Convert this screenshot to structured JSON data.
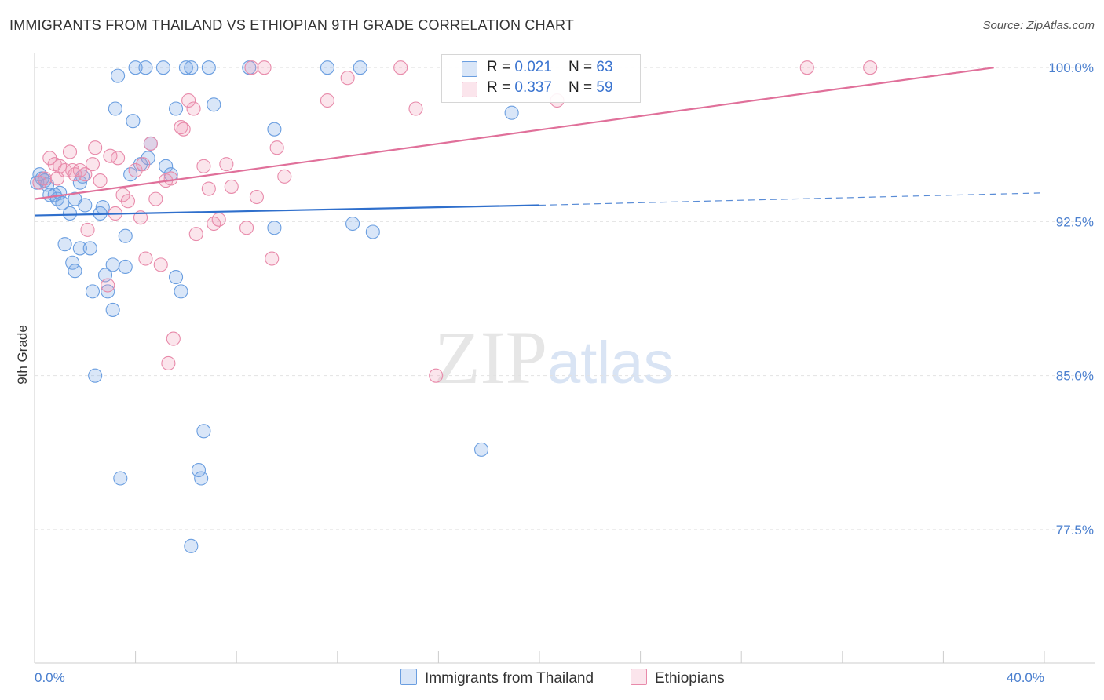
{
  "title": "IMMIGRANTS FROM THAILAND VS ETHIOPIAN 9TH GRADE CORRELATION CHART",
  "source": "Source: ZipAtlas.com",
  "watermark": {
    "zip": "ZIP",
    "atlas": "atlas"
  },
  "colors": {
    "blue": "#6a9ee0",
    "blue_fill": "rgba(120,165,230,0.28)",
    "pink": "#e88aaa",
    "pink_fill": "rgba(240,150,180,0.25)",
    "blue_line": "#2f6fcc",
    "pink_line": "#e0709a",
    "tick_text": "#4a7fcf"
  },
  "legend_top": [
    {
      "r_label": "R = ",
      "r_value": "0.021",
      "n_label": "N = ",
      "n_value": "63"
    },
    {
      "r_label": "R = ",
      "r_value": "0.337",
      "n_label": "N = ",
      "n_value": "59"
    }
  ],
  "legend_bottom": [
    "Immigrants from Thailand",
    "Ethiopians"
  ],
  "chart_data": {
    "type": "scatter",
    "title": "IMMIGRANTS FROM THAILAND VS ETHIOPIAN 9TH GRADE CORRELATION CHART",
    "xlabel": "",
    "ylabel": "9th Grade",
    "xlim": [
      0,
      40
    ],
    "ylim": [
      71.0,
      101.0
    ],
    "x_tick_labels": [
      {
        "value": 0,
        "label": "0.0%"
      },
      {
        "value": 40,
        "label": "40.0%"
      }
    ],
    "y_tick_labels": [
      {
        "value": 100,
        "label": "100.0%"
      },
      {
        "value": 92.5,
        "label": "92.5%"
      },
      {
        "value": 85,
        "label": "85.0%"
      },
      {
        "value": 77.5,
        "label": "77.5%"
      }
    ],
    "series": [
      {
        "name": "Immigrants from Thailand",
        "r": 0.021,
        "n": 63,
        "trend": {
          "x": [
            0,
            20
          ],
          "y": [
            92.8,
            93.3
          ],
          "dashed_to": [
            40,
            93.9
          ]
        },
        "points": [
          [
            0.1,
            94.4
          ],
          [
            0.2,
            94.8
          ],
          [
            0.3,
            94.6
          ],
          [
            0.4,
            94.5
          ],
          [
            0.5,
            94.3
          ],
          [
            0.6,
            93.8
          ],
          [
            0.8,
            93.8
          ],
          [
            0.9,
            93.6
          ],
          [
            1.0,
            93.9
          ],
          [
            1.1,
            93.4
          ],
          [
            1.4,
            92.9
          ],
          [
            1.6,
            93.6
          ],
          [
            1.8,
            94.4
          ],
          [
            1.9,
            94.7
          ],
          [
            2.0,
            93.3
          ],
          [
            2.6,
            92.9
          ],
          [
            2.7,
            93.2
          ],
          [
            1.2,
            91.4
          ],
          [
            1.5,
            90.5
          ],
          [
            1.6,
            90.1
          ],
          [
            1.8,
            91.2
          ],
          [
            2.2,
            91.2
          ],
          [
            2.3,
            89.1
          ],
          [
            2.8,
            89.9
          ],
          [
            2.9,
            89.1
          ],
          [
            3.1,
            90.4
          ],
          [
            3.1,
            88.2
          ],
          [
            3.6,
            90.3
          ],
          [
            3.6,
            91.8
          ],
          [
            3.8,
            94.8
          ],
          [
            4.2,
            95.3
          ],
          [
            4.5,
            95.6
          ],
          [
            4.6,
            96.3
          ],
          [
            5.2,
            95.2
          ],
          [
            5.4,
            94.8
          ],
          [
            5.6,
            89.8
          ],
          [
            5.8,
            89.1
          ],
          [
            2.4,
            85.0
          ],
          [
            3.4,
            80.0
          ],
          [
            6.7,
            82.3
          ],
          [
            6.5,
            80.4
          ],
          [
            6.6,
            80.0
          ],
          [
            6.2,
            76.7
          ],
          [
            3.2,
            98.0
          ],
          [
            3.3,
            99.6
          ],
          [
            3.9,
            97.4
          ],
          [
            4.0,
            100.0
          ],
          [
            4.4,
            100.0
          ],
          [
            5.1,
            100.0
          ],
          [
            5.6,
            98.0
          ],
          [
            6.0,
            100.0
          ],
          [
            6.2,
            100.0
          ],
          [
            6.9,
            100.0
          ],
          [
            7.1,
            98.2
          ],
          [
            8.5,
            100.0
          ],
          [
            9.5,
            97.0
          ],
          [
            9.5,
            92.2
          ],
          [
            11.6,
            100.0
          ],
          [
            12.6,
            92.4
          ],
          [
            12.9,
            100.0
          ],
          [
            13.4,
            92.0
          ],
          [
            18.9,
            97.8
          ],
          [
            17.7,
            81.4
          ]
        ]
      },
      {
        "name": "Ethiopians",
        "r": 0.337,
        "n": 59,
        "trend": {
          "x": [
            0,
            38
          ],
          "y": [
            93.6,
            100.0
          ]
        },
        "points": [
          [
            0.2,
            94.4
          ],
          [
            0.4,
            94.6
          ],
          [
            0.6,
            95.6
          ],
          [
            0.8,
            95.3
          ],
          [
            1.0,
            95.2
          ],
          [
            1.2,
            95.0
          ],
          [
            1.4,
            95.9
          ],
          [
            1.6,
            94.8
          ],
          [
            1.8,
            95.0
          ],
          [
            2.1,
            92.1
          ],
          [
            2.3,
            95.3
          ],
          [
            2.4,
            96.1
          ],
          [
            2.6,
            94.5
          ],
          [
            2.9,
            89.4
          ],
          [
            3.0,
            95.7
          ],
          [
            3.2,
            92.9
          ],
          [
            3.3,
            95.6
          ],
          [
            3.5,
            93.8
          ],
          [
            3.7,
            93.5
          ],
          [
            4.0,
            95.0
          ],
          [
            4.2,
            92.7
          ],
          [
            4.4,
            90.7
          ],
          [
            4.6,
            96.3
          ],
          [
            4.8,
            93.6
          ],
          [
            5.0,
            90.4
          ],
          [
            5.2,
            94.5
          ],
          [
            5.4,
            94.6
          ],
          [
            5.5,
            86.8
          ],
          [
            5.3,
            85.6
          ],
          [
            5.8,
            97.1
          ],
          [
            5.9,
            97.0
          ],
          [
            6.1,
            98.4
          ],
          [
            6.3,
            98.0
          ],
          [
            6.4,
            91.9
          ],
          [
            6.7,
            95.2
          ],
          [
            6.9,
            94.1
          ],
          [
            7.1,
            92.4
          ],
          [
            7.3,
            92.6
          ],
          [
            7.6,
            95.3
          ],
          [
            7.8,
            94.2
          ],
          [
            8.4,
            92.2
          ],
          [
            8.6,
            100.0
          ],
          [
            8.8,
            93.7
          ],
          [
            9.1,
            100.0
          ],
          [
            9.4,
            90.7
          ],
          [
            9.6,
            96.1
          ],
          [
            9.9,
            94.7
          ],
          [
            11.6,
            98.4
          ],
          [
            12.4,
            99.5
          ],
          [
            14.5,
            100.0
          ],
          [
            15.1,
            98.0
          ],
          [
            15.9,
            85.0
          ],
          [
            20.7,
            98.4
          ],
          [
            30.6,
            100.0
          ],
          [
            33.1,
            100.0
          ],
          [
            4.3,
            95.3
          ],
          [
            1.5,
            95.0
          ],
          [
            2.0,
            94.8
          ],
          [
            0.9,
            94.6
          ]
        ]
      }
    ]
  }
}
